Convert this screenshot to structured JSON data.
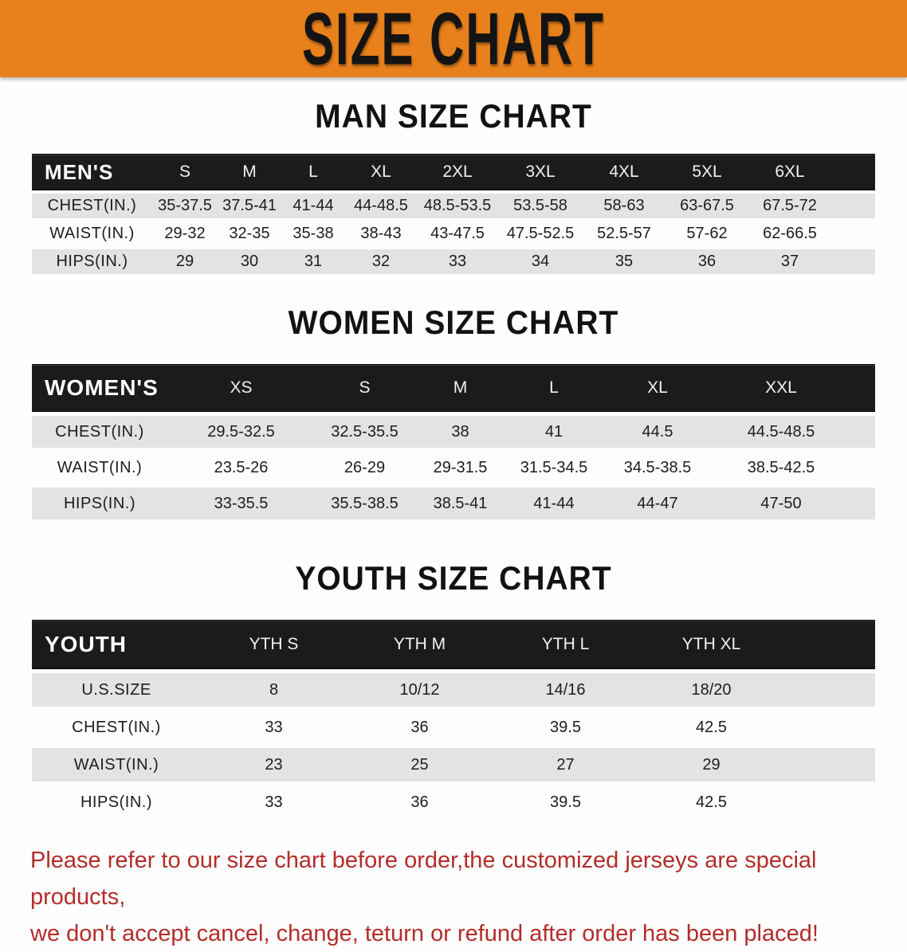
{
  "banner": {
    "title": "SIZE CHART"
  },
  "colors": {
    "banner_bg": "#e8811c",
    "header_bar": "#1b1b1b",
    "row_stripe": "#e3e3e3",
    "footer_text": "#b32d2a"
  },
  "sections": [
    {
      "heading": "MAN SIZE CHART",
      "corner_label": "MEN'S",
      "columns": [
        "S",
        "M",
        "L",
        "XL",
        "2XL",
        "3XL",
        "4XL",
        "5XL",
        "6XL"
      ],
      "rows": [
        {
          "label": "CHEST(IN.)",
          "values": [
            "35-37.5",
            "37.5-41",
            "41-44",
            "44-48.5",
            "48.5-53.5",
            "53.5-58",
            "58-63",
            "63-67.5",
            "67.5-72"
          ]
        },
        {
          "label": "WAIST(IN.)",
          "values": [
            "29-32",
            "32-35",
            "35-38",
            "38-43",
            "43-47.5",
            "47.5-52.5",
            "52.5-57",
            "57-62",
            "62-66.5"
          ]
        },
        {
          "label": "HIPS(IN.)",
          "values": [
            "29",
            "30",
            "31",
            "32",
            "33",
            "34",
            "35",
            "36",
            "37"
          ]
        }
      ]
    },
    {
      "heading": "WOMEN SIZE CHART",
      "corner_label": "WOMEN'S",
      "columns": [
        "XS",
        "S",
        "M",
        "L",
        "XL",
        "XXL"
      ],
      "rows": [
        {
          "label": "CHEST(IN.)",
          "values": [
            "29.5-32.5",
            "32.5-35.5",
            "38",
            "41",
            "44.5",
            "44.5-48.5"
          ]
        },
        {
          "label": "WAIST(IN.)",
          "values": [
            "23.5-26",
            "26-29",
            "29-31.5",
            "31.5-34.5",
            "34.5-38.5",
            "38.5-42.5"
          ]
        },
        {
          "label": "HIPS(IN.)",
          "values": [
            "33-35.5",
            "35.5-38.5",
            "38.5-41",
            "41-44",
            "44-47",
            "47-50"
          ]
        }
      ]
    },
    {
      "heading": "YOUTH SIZE CHART",
      "corner_label": "YOUTH",
      "columns": [
        "YTH S",
        "YTH M",
        "YTH L",
        "YTH XL"
      ],
      "rows": [
        {
          "label": "U.S.SIZE",
          "values": [
            "8",
            "10/12",
            "14/16",
            "18/20"
          ]
        },
        {
          "label": "CHEST(IN.)",
          "values": [
            "33",
            "36",
            "39.5",
            "42.5"
          ]
        },
        {
          "label": "WAIST(IN.)",
          "values": [
            "23",
            "25",
            "27",
            "29"
          ]
        },
        {
          "label": "HIPS(IN.)",
          "values": [
            "33",
            "36",
            "39.5",
            "42.5"
          ]
        }
      ]
    }
  ],
  "footer": {
    "line1": "Please refer to our size chart before order,the customized jerseys are special products,",
    "line2": "we don't accept cancel, change, teturn or refund after order has been placed!"
  }
}
